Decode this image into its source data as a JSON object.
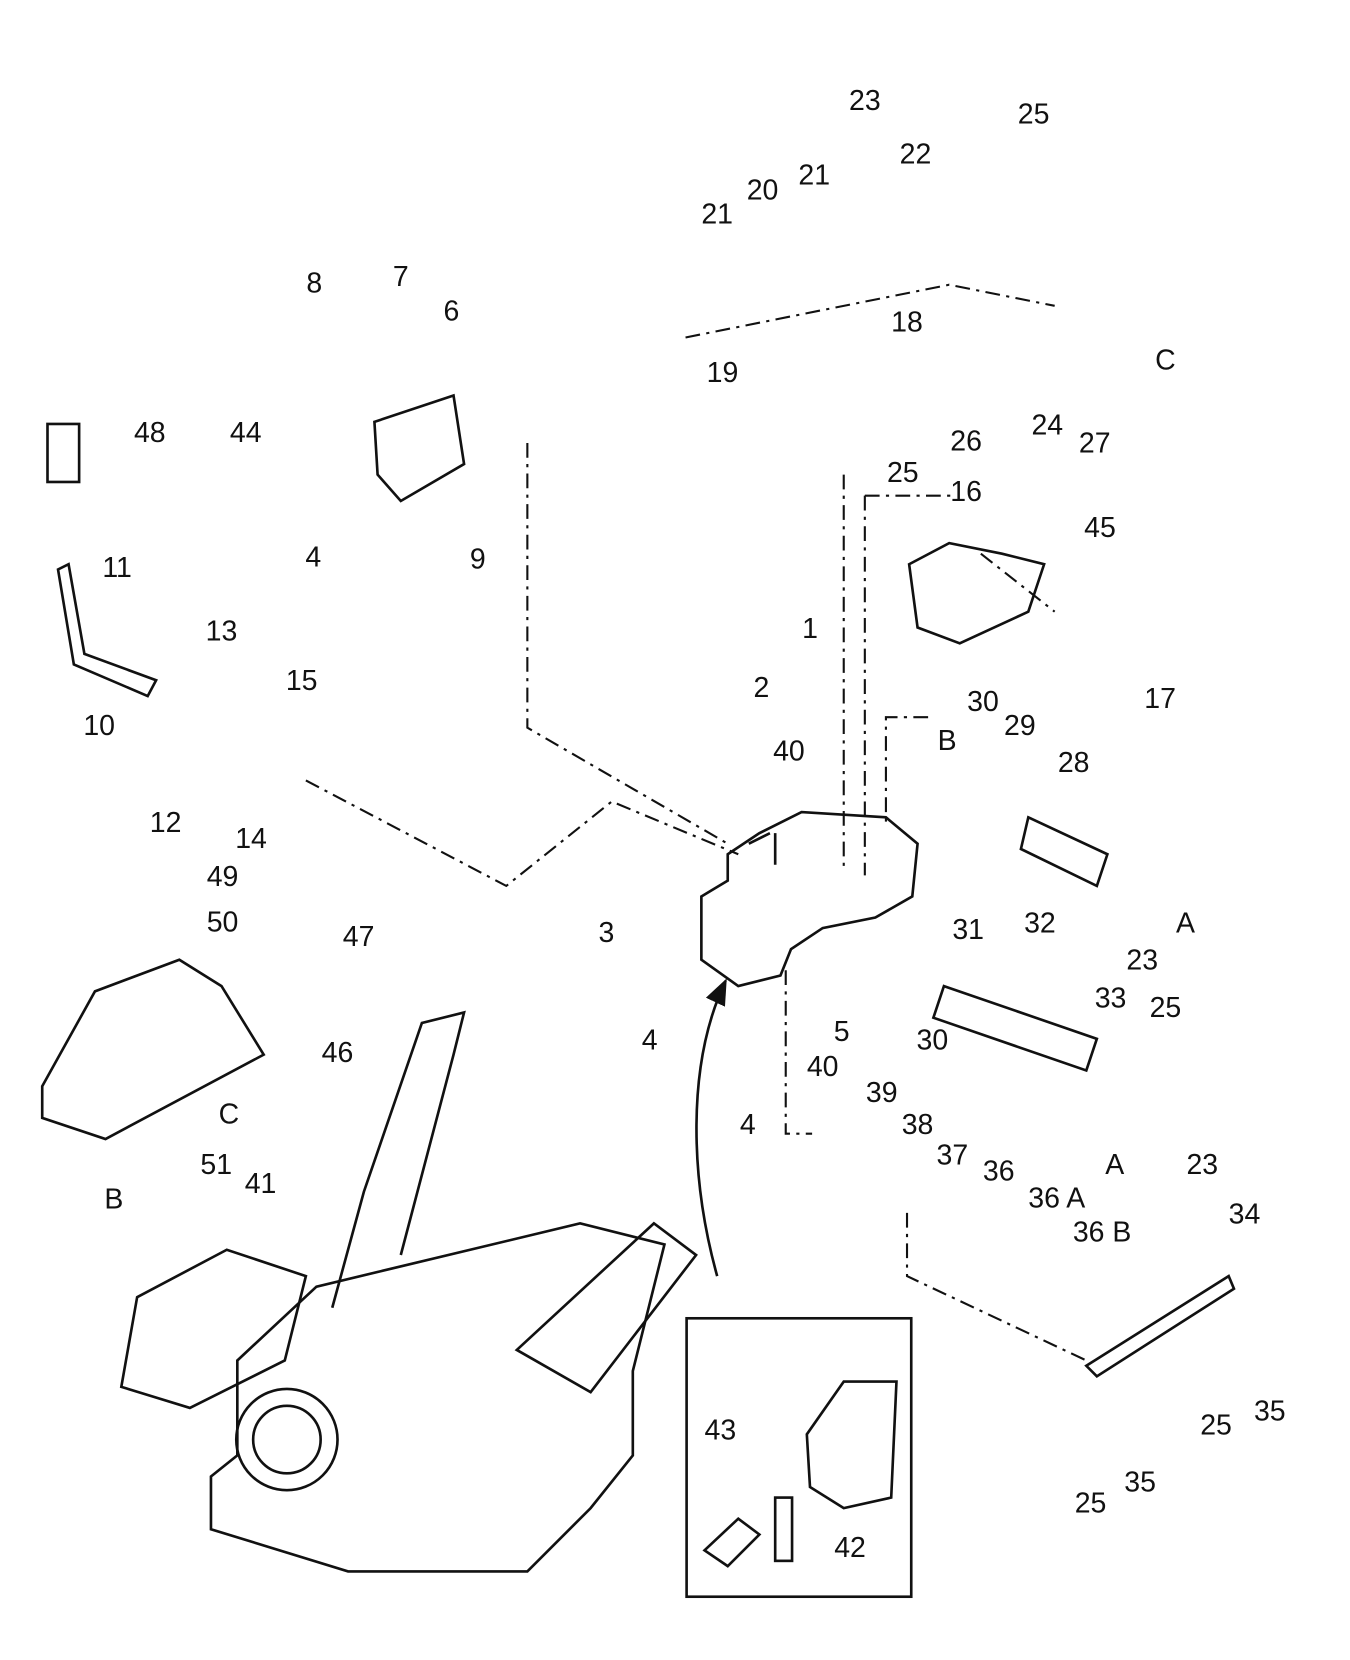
{
  "callouts": [
    "23",
    "25",
    "22",
    "20",
    "21",
    "21",
    "18",
    "19",
    "26",
    "24",
    "27",
    "C",
    "25",
    "16",
    "45",
    "8",
    "7",
    "6",
    "48",
    "44",
    "4",
    "9",
    "11",
    "13",
    "15",
    "1",
    "2",
    "10",
    "12",
    "14",
    "17",
    "30",
    "29",
    "B",
    "40",
    "28",
    "49",
    "50",
    "47",
    "3",
    "31",
    "32",
    "A",
    "23",
    "33",
    "25",
    "4",
    "5",
    "30",
    "46",
    "4",
    "40",
    "39",
    "38",
    "37",
    "36",
    "36 A",
    "36 B",
    "C",
    "51",
    "41",
    "B",
    "A",
    "23",
    "34",
    "35",
    "25",
    "35",
    "25",
    "43",
    "42"
  ]
}
